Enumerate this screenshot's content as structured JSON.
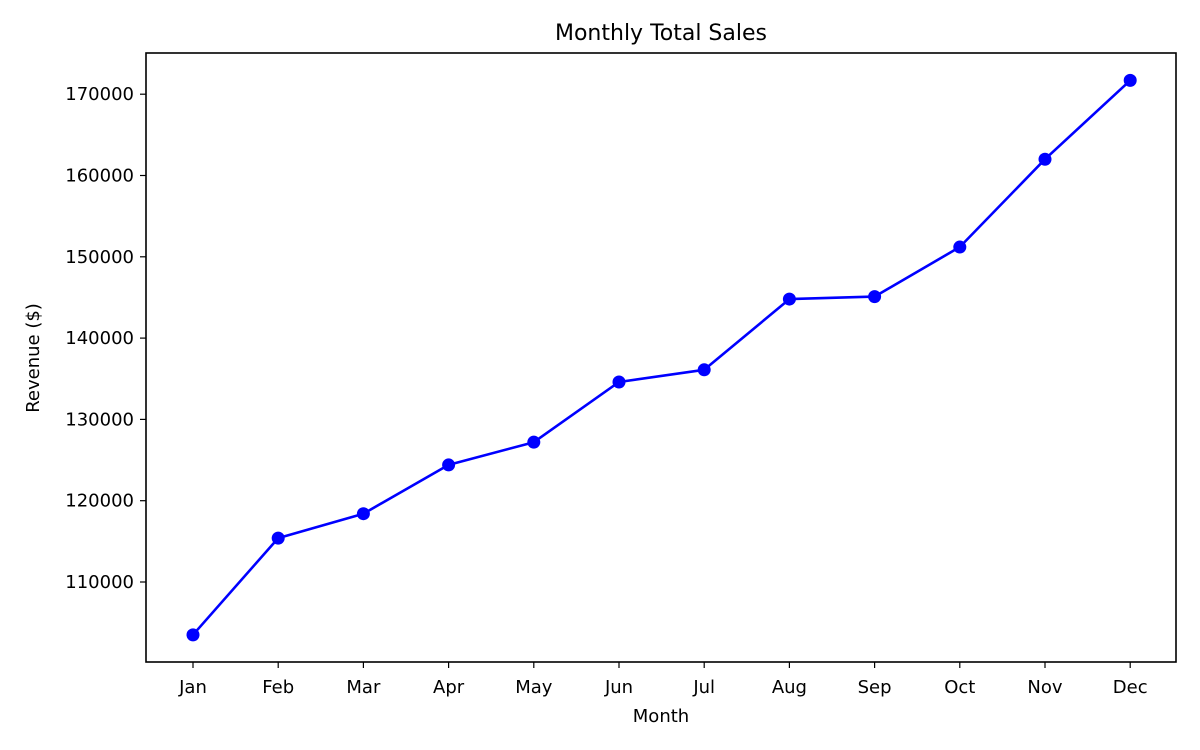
{
  "chart_data": {
    "type": "line",
    "title": "Monthly Total Sales",
    "xlabel": "Month",
    "ylabel": "Revenue ($)",
    "categories": [
      "Jan",
      "Feb",
      "Mar",
      "Apr",
      "May",
      "Jun",
      "Jul",
      "Aug",
      "Sep",
      "Oct",
      "Nov",
      "Dec"
    ],
    "series": [
      {
        "values": [
          103500,
          115400,
          118400,
          124400,
          127200,
          134600,
          136100,
          144800,
          145100,
          151200,
          162000,
          171700
        ]
      }
    ],
    "yticks": [
      110000,
      120000,
      130000,
      140000,
      150000,
      160000,
      170000
    ],
    "ylim": [
      100000,
      175000
    ],
    "grid": false,
    "legend": "none",
    "line_color": "#0000ff",
    "marker": "circle"
  }
}
